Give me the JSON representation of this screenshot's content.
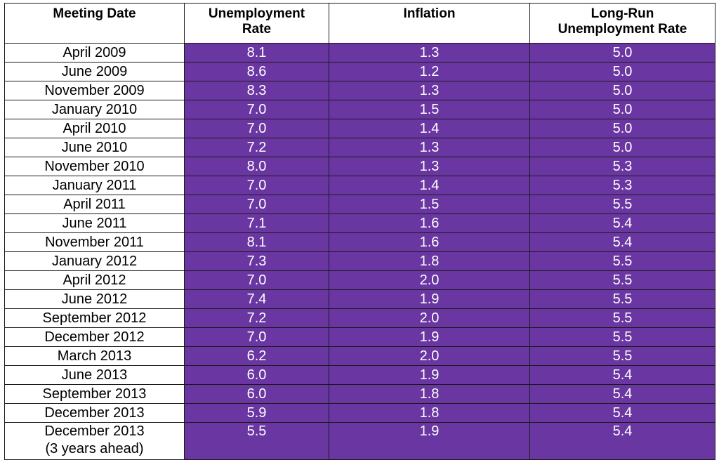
{
  "table": {
    "headers": [
      "Meeting Date",
      "Unemployment\nRate",
      "Inflation",
      "Long-Run\nUnemployment Rate"
    ],
    "rows": [
      [
        "April 2009",
        "8.1",
        "1.3",
        "5.0"
      ],
      [
        "June 2009",
        "8.6",
        "1.2",
        "5.0"
      ],
      [
        "November 2009",
        "8.3",
        "1.3",
        "5.0"
      ],
      [
        "January 2010",
        "7.0",
        "1.5",
        "5.0"
      ],
      [
        "April 2010",
        "7.0",
        "1.4",
        "5.0"
      ],
      [
        "June 2010",
        "7.2",
        "1.3",
        "5.0"
      ],
      [
        "November 2010",
        "8.0",
        "1.3",
        "5.3"
      ],
      [
        "January 2011",
        "7.0",
        "1.4",
        "5.3"
      ],
      [
        "April 2011",
        "7.0",
        "1.5",
        "5.5"
      ],
      [
        "June 2011",
        "7.1",
        "1.6",
        "5.4"
      ],
      [
        "November 2011",
        "8.1",
        "1.6",
        "5.4"
      ],
      [
        "January 2012",
        "7.3",
        "1.8",
        "5.5"
      ],
      [
        "April 2012",
        "7.0",
        "2.0",
        "5.5"
      ],
      [
        "June 2012",
        "7.4",
        "1.9",
        "5.5"
      ],
      [
        "September 2012",
        "7.2",
        "2.0",
        "5.5"
      ],
      [
        "December 2012",
        "7.0",
        "1.9",
        "5.5"
      ],
      [
        "March 2013",
        "6.2",
        "2.0",
        "5.5"
      ],
      [
        "June 2013",
        "6.0",
        "1.9",
        "5.4"
      ],
      [
        "September 2013",
        "6.0",
        "1.8",
        "5.4"
      ],
      [
        "December 2013",
        "5.9",
        "1.8",
        "5.4"
      ],
      [
        "December 2013\n(3 years ahead)",
        "5.5",
        "1.9",
        "5.4"
      ]
    ],
    "colors": {
      "value_cell_bg": "#6a36a2",
      "value_cell_text": "#ffffff",
      "border": "#1a1a1a"
    }
  }
}
